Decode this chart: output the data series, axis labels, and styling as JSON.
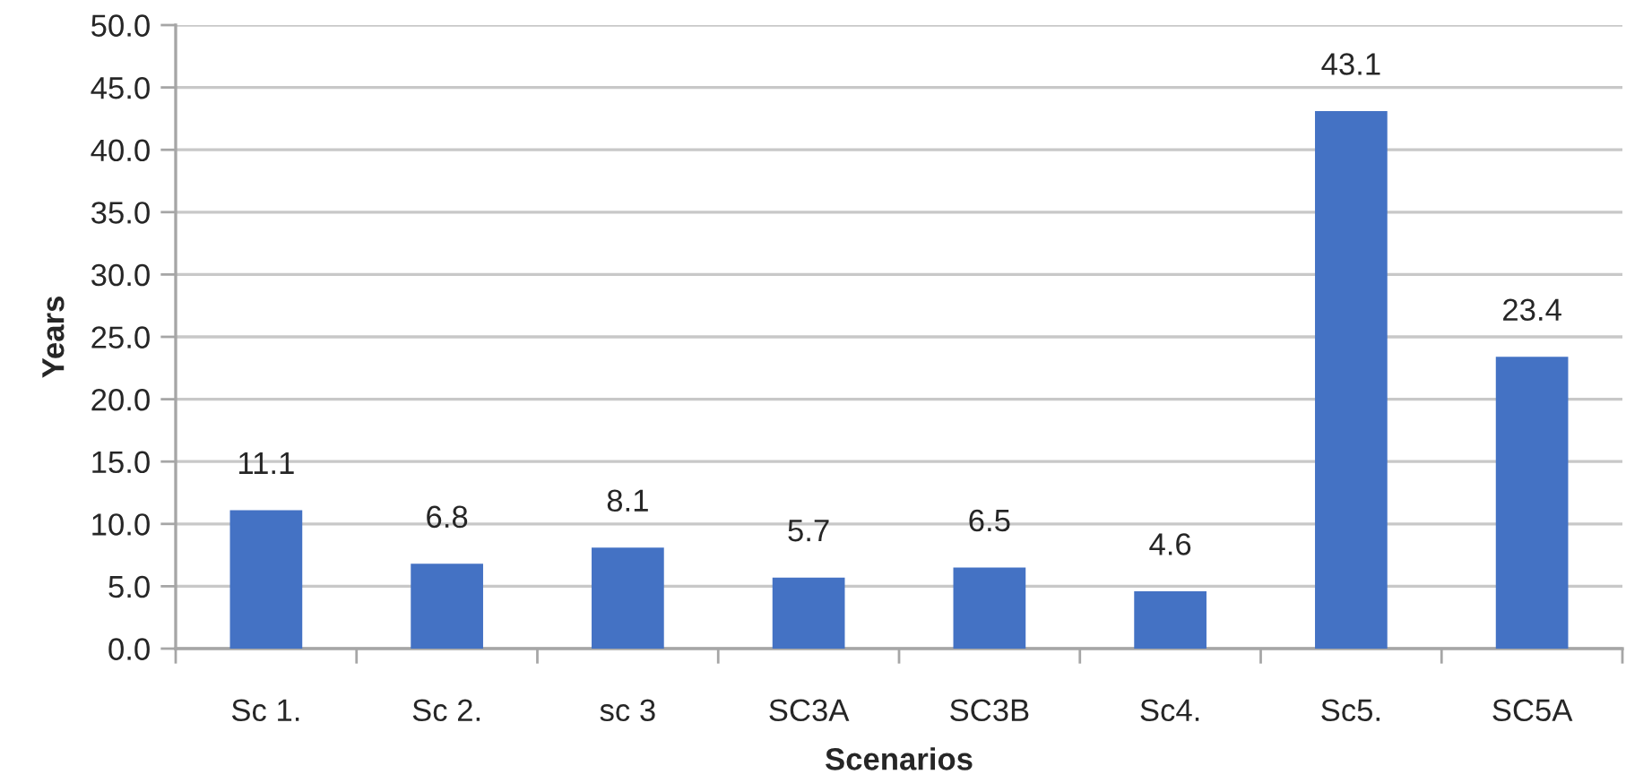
{
  "chart_data": {
    "type": "bar",
    "xlabel": "Scenarios",
    "ylabel": "Years",
    "categories": [
      "Sc 1.",
      "Sc 2.",
      "sc 3",
      "SC3A",
      "SC3B",
      "Sc4.",
      "Sc5.",
      "SC5A"
    ],
    "values": [
      11.1,
      6.8,
      8.1,
      5.7,
      6.5,
      4.6,
      43.1,
      23.4
    ],
    "color": "#4472c4",
    "ylim": [
      0,
      50
    ],
    "yticks": [
      {
        "value": 0,
        "label": "0.0"
      },
      {
        "value": 5,
        "label": "5.0"
      },
      {
        "value": 10,
        "label": "10.0"
      },
      {
        "value": 15,
        "label": "15.0"
      },
      {
        "value": 20,
        "label": "20.0"
      },
      {
        "value": 25,
        "label": "25.0"
      },
      {
        "value": 30,
        "label": "30.0"
      },
      {
        "value": 35,
        "label": "35.0"
      },
      {
        "value": 40,
        "label": "40.0"
      },
      {
        "value": 45,
        "label": "45.0"
      },
      {
        "value": 50,
        "label": "50.0"
      }
    ],
    "grid": "y",
    "data_labels": true,
    "legend": false
  }
}
